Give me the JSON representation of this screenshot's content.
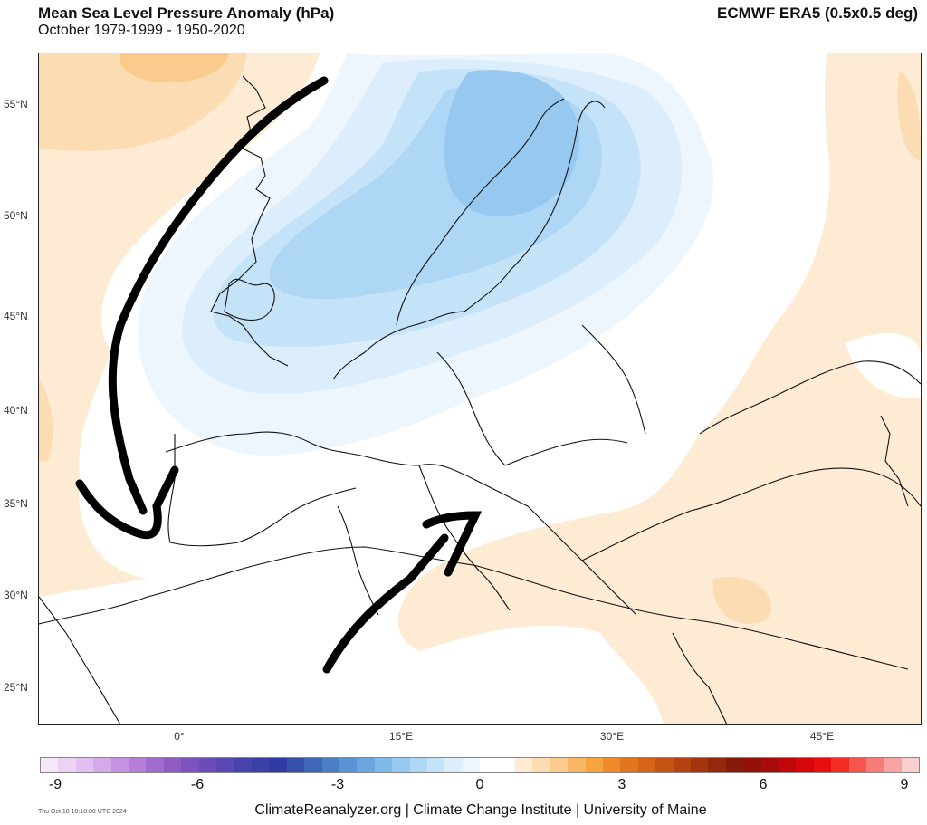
{
  "header": {
    "title": "Mean Sea Level Pressure Anomaly (hPa)",
    "subtitle": "October 1979-1999 - 1950-2020",
    "source": "ECMWF ERA5 (0.5x0.5 deg)"
  },
  "axes": {
    "lat_ticks": [
      "55°N",
      "50°N",
      "45°N",
      "40°N",
      "35°N",
      "30°N",
      "25°N"
    ],
    "lon_ticks": [
      "0°",
      "15°E",
      "30°E",
      "45°E"
    ]
  },
  "colorbar": {
    "ticks": [
      "-9",
      "-6",
      "-3",
      "0",
      "3",
      "6",
      "9"
    ],
    "colors": [
      "#f5e6f8",
      "#ecd3f3",
      "#e2bff0",
      "#d6a9ea",
      "#c693e2",
      "#b47ed9",
      "#a26bcf",
      "#8f5cc6",
      "#7c52be",
      "#6a4bb7",
      "#5848b1",
      "#4743ad",
      "#3b40a9",
      "#2f3aa3",
      "#3550a8",
      "#3e68b7",
      "#4a7fc6",
      "#5a93d3",
      "#6ba5de",
      "#80b8e8",
      "#97c9f0",
      "#aed7f5",
      "#c5e3f8",
      "#dcedfb",
      "#eef6fd",
      "#ffffff",
      "#ffffff",
      "#fdebd4",
      "#fcdcb3",
      "#fbcb8e",
      "#f9b766",
      "#f7a340",
      "#f08b2a",
      "#e2761f",
      "#d56418",
      "#c55314",
      "#b54311",
      "#a5340e",
      "#95270b",
      "#851b08",
      "#921009",
      "#a80b0a",
      "#bf070b",
      "#d6060c",
      "#ea0d0f",
      "#f52b26",
      "#f6544d",
      "#f77c78",
      "#f8a4a2",
      "#fad0cf"
    ]
  },
  "footer": {
    "stamp": "Thu Oct 10 10:18:08 UTC 2024",
    "credit": "ClimateReanalyzer.org | Climate Change Institute | University of Maine"
  },
  "legend_colors": {
    "neg_3": "#97c9f0",
    "neg_2": "#c5e3f8",
    "neg_1": "#dcedfb",
    "pos_1": "#fdebd4",
    "pos_2": "#fcdcb3",
    "pos_3": "#fbcb8e"
  }
}
